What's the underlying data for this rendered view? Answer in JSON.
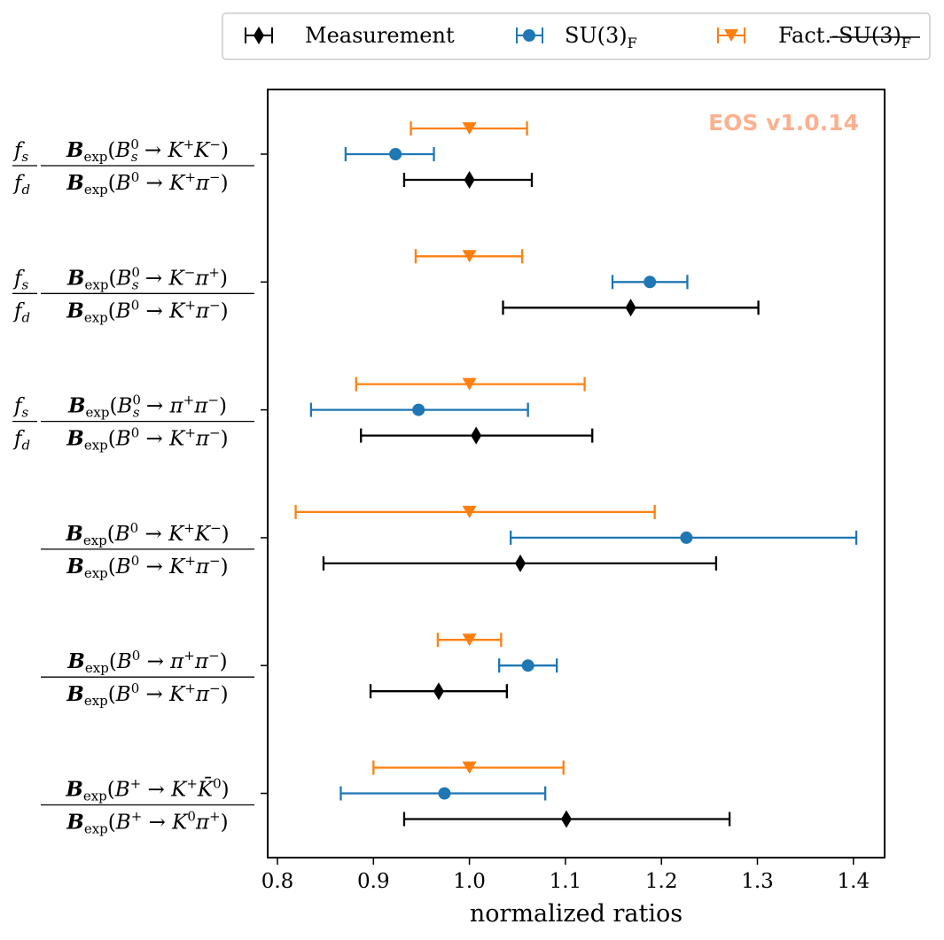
{
  "chart_data": {
    "type": "scatter",
    "title": "",
    "xlabel": "normalized ratios",
    "ylabel": "",
    "xlim": [
      0.79,
      1.435
    ],
    "xticks": [
      0.8,
      0.9,
      1.0,
      1.1,
      1.2,
      1.3,
      1.4
    ],
    "xtick_labels": [
      "0.8",
      "0.9",
      "1.0",
      "1.1",
      "1.2",
      "1.3",
      "1.4"
    ],
    "grid": false,
    "legend_position": "top-center-outside",
    "watermark": "EOS v1.0.14",
    "categories": [
      "f_s/f_d · B_exp(B_s^0 → K^+K^-) / B_exp(B^0 → K^+π^-)",
      "f_s/f_d · B_exp(B_s^0 → K^-π^+) / B_exp(B^0 → K^+π^-)",
      "f_s/f_d · B_exp(B_s^0 → π^+π^-) / B_exp(B^0 → K^+π^-)",
      "B_exp(B^0 → K^+K^-) / B_exp(B^0 → K^+π^-)",
      "B_exp(B^0 → π^+π^-) / B_exp(B^0 → K^+π^-)",
      "B_exp(B^+ → K^+K̄^0) / B_exp(B^+ → K^0π^+)"
    ],
    "series": [
      {
        "name": "Measurement",
        "marker": "diamond",
        "color": "#000000",
        "values": [
          1.0,
          1.168,
          1.007,
          1.053,
          0.968,
          1.101
        ],
        "xerr_low": [
          0.932,
          1.035,
          0.887,
          0.848,
          0.897,
          0.932
        ],
        "xerr_high": [
          1.065,
          1.301,
          1.128,
          1.257,
          1.039,
          1.271
        ]
      },
      {
        "name": "SU(3)_F",
        "marker": "circle",
        "color": "#1f77b4",
        "values": [
          0.923,
          1.188,
          0.947,
          1.226,
          1.061,
          0.974
        ],
        "xerr_low": [
          0.871,
          1.149,
          0.835,
          1.043,
          1.031,
          0.866
        ],
        "xerr_high": [
          0.963,
          1.227,
          1.061,
          1.403,
          1.091,
          1.079
        ]
      },
      {
        "name": "Fact.-SU(3)_F",
        "marker": "triangle-down",
        "color": "#ff7f0e",
        "values": [
          1.0,
          1.0,
          1.0,
          1.0,
          1.0,
          1.0
        ],
        "xerr_low": [
          0.939,
          0.944,
          0.882,
          0.819,
          0.967,
          0.9
        ],
        "xerr_high": [
          1.06,
          1.055,
          1.12,
          1.193,
          1.033,
          1.098
        ]
      }
    ]
  },
  "legend": {
    "measurement_label": "Measurement",
    "su3_label": "SU(3)",
    "su3_sub": "F",
    "fact_label_prefix": "Fact.-",
    "fact_label_struck": "SU(3)",
    "fact_sub": "F"
  },
  "watermark": {
    "text": "EOS v1.0.14",
    "color": "#fbb190"
  },
  "ylabels": [
    {
      "fs": "f",
      "fs_sub": "s",
      "fd": "f",
      "fd_sub": "d",
      "num": {
        "B": "B",
        "exp": "exp",
        "meson": "B",
        "msub": "s",
        "msup": "0",
        "arrow": "→",
        "f1": "K",
        "f1sup": "+",
        "f2": "K",
        "f2sup": "−"
      },
      "den": {
        "B": "B",
        "exp": "exp",
        "meson": "B",
        "msup": "0",
        "arrow": "→",
        "f1": "K",
        "f1sup": "+",
        "f2": "π",
        "f2sup": "−"
      }
    },
    {
      "fs": "f",
      "fs_sub": "s",
      "fd": "f",
      "fd_sub": "d",
      "num": {
        "B": "B",
        "exp": "exp",
        "meson": "B",
        "msub": "s",
        "msup": "0",
        "arrow": "→",
        "f1": "K",
        "f1sup": "−",
        "f2": "π",
        "f2sup": "+"
      },
      "den": {
        "B": "B",
        "exp": "exp",
        "meson": "B",
        "msup": "0",
        "arrow": "→",
        "f1": "K",
        "f1sup": "+",
        "f2": "π",
        "f2sup": "−"
      }
    },
    {
      "fs": "f",
      "fs_sub": "s",
      "fd": "f",
      "fd_sub": "d",
      "num": {
        "B": "B",
        "exp": "exp",
        "meson": "B",
        "msub": "s",
        "msup": "0",
        "arrow": "→",
        "f1": "π",
        "f1sup": "+",
        "f2": "π",
        "f2sup": "−"
      },
      "den": {
        "B": "B",
        "exp": "exp",
        "meson": "B",
        "msup": "0",
        "arrow": "→",
        "f1": "K",
        "f1sup": "+",
        "f2": "π",
        "f2sup": "−"
      }
    },
    {
      "num": {
        "B": "B",
        "exp": "exp",
        "meson": "B",
        "msup": "0",
        "arrow": "→",
        "f1": "K",
        "f1sup": "+",
        "f2": "K",
        "f2sup": "−"
      },
      "den": {
        "B": "B",
        "exp": "exp",
        "meson": "B",
        "msup": "0",
        "arrow": "→",
        "f1": "K",
        "f1sup": "+",
        "f2": "π",
        "f2sup": "−"
      }
    },
    {
      "num": {
        "B": "B",
        "exp": "exp",
        "meson": "B",
        "msup": "0",
        "arrow": "→",
        "f1": "π",
        "f1sup": "+",
        "f2": "π",
        "f2sup": "−"
      },
      "den": {
        "B": "B",
        "exp": "exp",
        "meson": "B",
        "msup": "0",
        "arrow": "→",
        "f1": "K",
        "f1sup": "+",
        "f2": "π",
        "f2sup": "−"
      }
    },
    {
      "num": {
        "B": "B",
        "exp": "exp",
        "meson": "B",
        "msup": "+",
        "arrow": "→",
        "f1": "K",
        "f1sup": "+",
        "f2": "K̄",
        "f2sup": "0"
      },
      "den": {
        "B": "B",
        "exp": "exp",
        "meson": "B",
        "msup": "+",
        "arrow": "→",
        "f1": "K",
        "f1sup": "0",
        "f2": "π",
        "f2sup": "+"
      }
    }
  ]
}
